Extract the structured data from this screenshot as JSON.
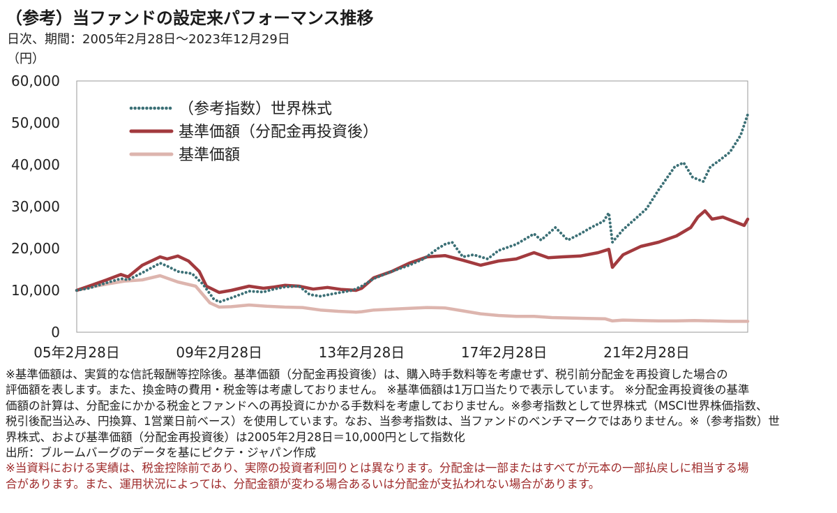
{
  "header": {
    "title": "（参考）当ファンドの設定来パフォーマンス推移",
    "subtitle": "日次、期間：2005年2月28日～2023年12月29日",
    "unit": "（円）"
  },
  "chart_data": {
    "type": "line",
    "title": "",
    "xlabel": "",
    "ylabel": "（円）",
    "ylim": [
      0,
      60000
    ],
    "xlim": [
      2005.16,
      2024.0
    ],
    "yticks": [
      0,
      10000,
      20000,
      30000,
      40000,
      50000,
      60000
    ],
    "ytick_labels": [
      "0",
      "10,000",
      "20,000",
      "30,000",
      "40,000",
      "50,000",
      "60,000"
    ],
    "xticks": [
      2005.16,
      2009.16,
      2013.16,
      2017.16,
      2021.16
    ],
    "xtick_labels": [
      "05年2月28日",
      "09年2月28日",
      "13年2月28日",
      "17年2月28日",
      "21年2月28日"
    ],
    "grid": false,
    "legend_position": "top-left",
    "series": [
      {
        "name": "（参考指数）世界株式",
        "color": "#3c7076",
        "style": "dotted",
        "points": [
          [
            2005.16,
            10000
          ],
          [
            2005.5,
            10500
          ],
          [
            2006.0,
            11800
          ],
          [
            2006.4,
            12800
          ],
          [
            2006.6,
            12500
          ],
          [
            2007.0,
            14200
          ],
          [
            2007.5,
            16500
          ],
          [
            2007.7,
            15800
          ],
          [
            2008.0,
            14500
          ],
          [
            2008.4,
            14000
          ],
          [
            2008.7,
            11500
          ],
          [
            2009.0,
            8000
          ],
          [
            2009.16,
            7200
          ],
          [
            2009.5,
            8200
          ],
          [
            2010.0,
            9800
          ],
          [
            2010.4,
            9600
          ],
          [
            2010.7,
            10300
          ],
          [
            2011.0,
            10800
          ],
          [
            2011.4,
            11000
          ],
          [
            2011.7,
            9000
          ],
          [
            2012.0,
            8600
          ],
          [
            2012.5,
            9400
          ],
          [
            2012.9,
            10000
          ],
          [
            2013.16,
            11000
          ],
          [
            2013.5,
            12800
          ],
          [
            2014.0,
            14500
          ],
          [
            2014.5,
            16000
          ],
          [
            2014.9,
            17500
          ],
          [
            2015.3,
            20000
          ],
          [
            2015.5,
            21000
          ],
          [
            2015.7,
            21500
          ],
          [
            2016.0,
            18000
          ],
          [
            2016.3,
            18500
          ],
          [
            2016.7,
            17500
          ],
          [
            2017.0,
            19500
          ],
          [
            2017.5,
            21000
          ],
          [
            2018.0,
            23500
          ],
          [
            2018.2,
            22000
          ],
          [
            2018.6,
            25000
          ],
          [
            2018.95,
            22000
          ],
          [
            2019.3,
            23500
          ],
          [
            2019.6,
            25000
          ],
          [
            2019.95,
            26500
          ],
          [
            2020.1,
            28500
          ],
          [
            2020.2,
            21500
          ],
          [
            2020.5,
            24500
          ],
          [
            2020.9,
            27500
          ],
          [
            2021.16,
            29500
          ],
          [
            2021.5,
            34000
          ],
          [
            2021.95,
            39500
          ],
          [
            2022.2,
            40500
          ],
          [
            2022.45,
            37000
          ],
          [
            2022.75,
            36000
          ],
          [
            2022.95,
            39500
          ],
          [
            2023.2,
            41000
          ],
          [
            2023.5,
            43000
          ],
          [
            2023.8,
            47000
          ],
          [
            2023.92,
            50000
          ],
          [
            2024.0,
            52000
          ]
        ]
      },
      {
        "name": "基準価額（分配金再投資後）",
        "color": "#a23a3e",
        "style": "solid",
        "points": [
          [
            2005.16,
            10000
          ],
          [
            2005.5,
            11000
          ],
          [
            2006.0,
            12500
          ],
          [
            2006.4,
            13800
          ],
          [
            2006.6,
            13200
          ],
          [
            2007.0,
            16000
          ],
          [
            2007.5,
            18000
          ],
          [
            2007.7,
            17500
          ],
          [
            2008.0,
            18200
          ],
          [
            2008.3,
            17000
          ],
          [
            2008.6,
            14500
          ],
          [
            2008.8,
            11000
          ],
          [
            2009.16,
            9500
          ],
          [
            2009.5,
            10000
          ],
          [
            2010.0,
            11000
          ],
          [
            2010.4,
            10500
          ],
          [
            2010.7,
            10800
          ],
          [
            2011.0,
            11200
          ],
          [
            2011.4,
            11000
          ],
          [
            2011.8,
            10300
          ],
          [
            2012.2,
            10700
          ],
          [
            2012.6,
            10200
          ],
          [
            2013.0,
            10000
          ],
          [
            2013.16,
            10500
          ],
          [
            2013.5,
            13000
          ],
          [
            2014.0,
            14500
          ],
          [
            2014.5,
            16500
          ],
          [
            2015.0,
            18000
          ],
          [
            2015.5,
            18300
          ],
          [
            2016.0,
            17200
          ],
          [
            2016.5,
            16000
          ],
          [
            2017.0,
            17000
          ],
          [
            2017.5,
            17500
          ],
          [
            2018.0,
            19000
          ],
          [
            2018.4,
            17800
          ],
          [
            2018.8,
            18000
          ],
          [
            2019.3,
            18200
          ],
          [
            2019.8,
            19000
          ],
          [
            2020.1,
            19800
          ],
          [
            2020.2,
            15500
          ],
          [
            2020.5,
            18500
          ],
          [
            2021.0,
            20500
          ],
          [
            2021.5,
            21500
          ],
          [
            2022.0,
            23000
          ],
          [
            2022.4,
            25000
          ],
          [
            2022.6,
            27500
          ],
          [
            2022.8,
            29000
          ],
          [
            2023.0,
            27000
          ],
          [
            2023.3,
            27500
          ],
          [
            2023.6,
            26500
          ],
          [
            2023.9,
            25500
          ],
          [
            2024.0,
            27000
          ]
        ]
      },
      {
        "name": "基準価額",
        "color": "#ddb5ae",
        "style": "solid",
        "points": [
          [
            2005.16,
            10000
          ],
          [
            2005.5,
            10700
          ],
          [
            2006.0,
            11500
          ],
          [
            2006.5,
            12200
          ],
          [
            2007.0,
            12500
          ],
          [
            2007.5,
            13500
          ],
          [
            2008.0,
            12000
          ],
          [
            2008.5,
            11000
          ],
          [
            2008.9,
            7000
          ],
          [
            2009.16,
            6000
          ],
          [
            2009.5,
            6100
          ],
          [
            2010.0,
            6500
          ],
          [
            2010.5,
            6200
          ],
          [
            2011.0,
            6000
          ],
          [
            2011.5,
            5900
          ],
          [
            2012.0,
            5300
          ],
          [
            2012.5,
            5000
          ],
          [
            2013.0,
            4800
          ],
          [
            2013.16,
            4900
          ],
          [
            2013.5,
            5300
          ],
          [
            2014.0,
            5500
          ],
          [
            2014.5,
            5700
          ],
          [
            2015.0,
            5900
          ],
          [
            2015.5,
            5800
          ],
          [
            2016.0,
            5100
          ],
          [
            2016.5,
            4400
          ],
          [
            2017.0,
            4000
          ],
          [
            2017.5,
            3800
          ],
          [
            2018.0,
            3800
          ],
          [
            2018.5,
            3500
          ],
          [
            2019.0,
            3400
          ],
          [
            2019.5,
            3300
          ],
          [
            2020.0,
            3200
          ],
          [
            2020.2,
            2700
          ],
          [
            2020.5,
            2900
          ],
          [
            2021.0,
            2800
          ],
          [
            2021.5,
            2700
          ],
          [
            2022.0,
            2700
          ],
          [
            2022.5,
            2800
          ],
          [
            2023.0,
            2700
          ],
          [
            2023.5,
            2600
          ],
          [
            2024.0,
            2600
          ]
        ]
      }
    ]
  },
  "notes": {
    "line1": "※基準価額は、実質的な信託報酬等控除後。基準価額（分配金再投資後）は、購入時手数料等を考慮せず、税引前分配金を再投資した場合の",
    "line2": "評価額を表します。また、換金時の費用・税金等は考慮しておりません。 ※基準価額は1万口当たりで表示しています。 ※分配金再投資後の基準",
    "line3": "価額の計算は、分配金にかかる税金とファンドへの再投資にかかる手数料を考慮しておりません。※参考指数として世界株式（MSCI世界株価指数、",
    "line4": "税引後配当込み、円換算、1営業日前ベース）を使用しています。なお、当参考指数は、当ファンドのベンチマークではありません。※（参考指数）世",
    "line5": "界株式、および基準価額（分配金再投資後）は2005年2月28日＝10,000円として指数化",
    "source": "出所：ブルームバーグのデータを基にピクテ・ジャパン作成",
    "warn1": "※当資料における実績は、税金控除前であり、実際の投資者利回りとは異なります。分配金は一部またはすべてが元本の一部払戻しに相当する場",
    "warn2": "合があります。また、運用状況によっては、分配金額が変わる場合あるいは分配金が支払われない場合があります。"
  }
}
